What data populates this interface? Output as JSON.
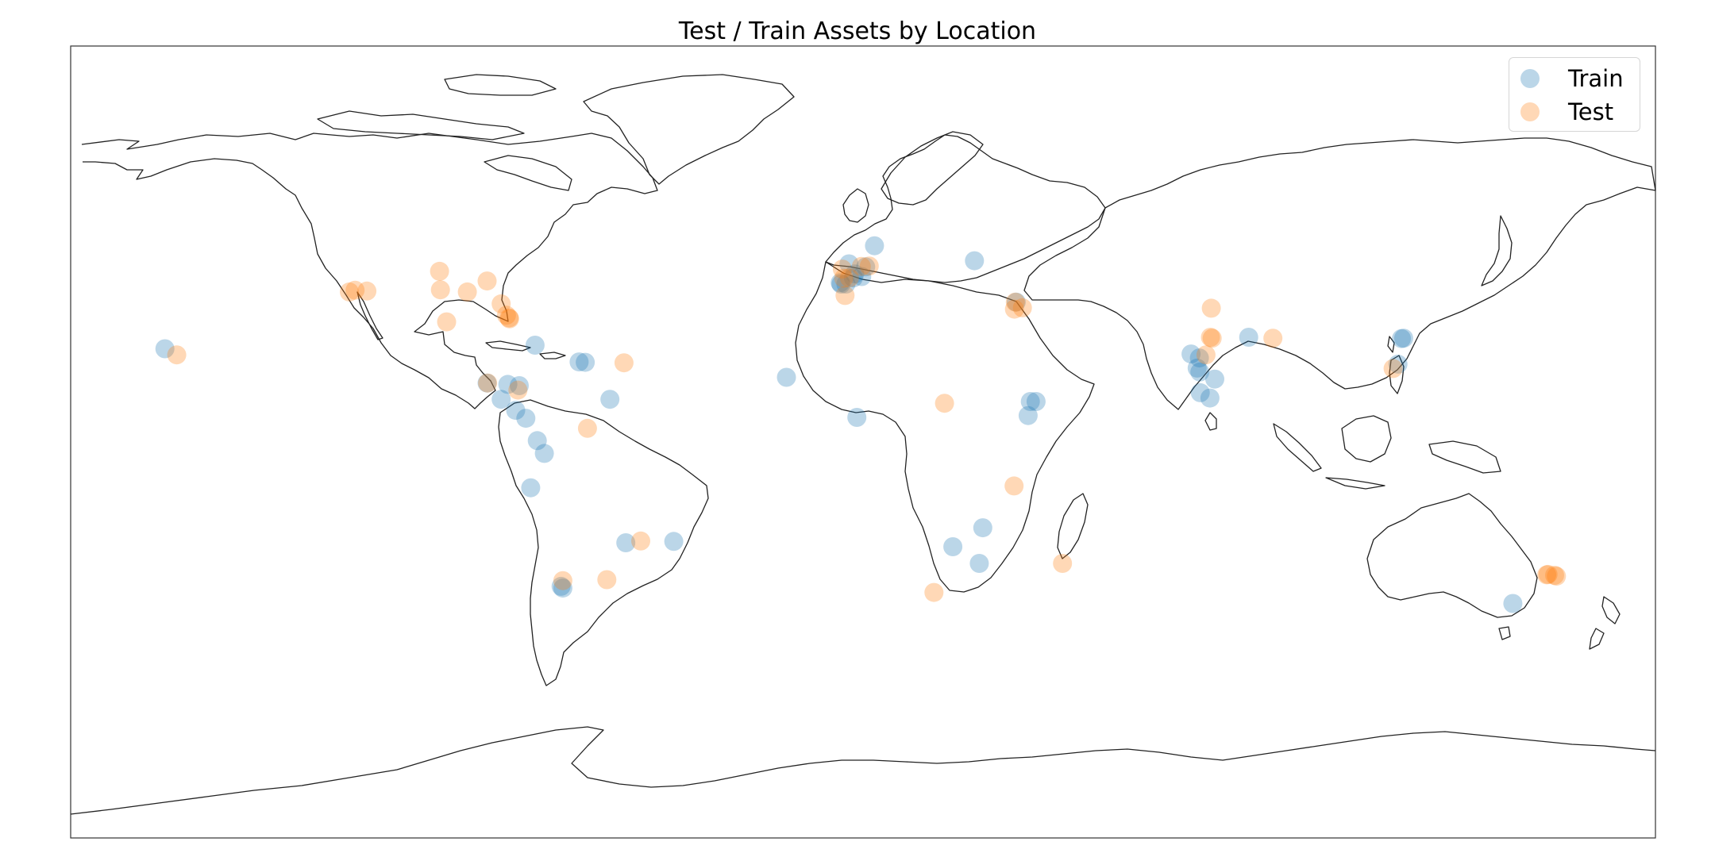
{
  "title": "Test / Train Assets by Location",
  "legend": {
    "placement": "top-right",
    "entries": [
      {
        "name": "Train",
        "color": "#1f77b4"
      },
      {
        "name": "Test",
        "color": "#ff7f0e"
      }
    ]
  },
  "chart_data": {
    "type": "scatter",
    "projection": "equirectangular",
    "xlim": [
      -180,
      180
    ],
    "ylim": [
      -90,
      90
    ],
    "title": "Test / Train Assets by Location",
    "series": [
      {
        "name": "Train",
        "color": "#1f77b4",
        "alpha": 0.3,
        "points": [
          [
            2.6,
            44.6
          ],
          [
            0.6,
            39.8
          ],
          [
            -3.2,
            40.5
          ],
          [
            -1.9,
            38.2
          ],
          [
            -0.3,
            37.6
          ],
          [
            -5.2,
            36.2
          ],
          [
            -2.2,
            37.3
          ],
          [
            -5.0,
            35.9
          ],
          [
            -3.9,
            35.9
          ],
          [
            25.3,
            41.2
          ],
          [
            34.8,
            31.8
          ],
          [
            -74.5,
            22.0
          ],
          [
            -64.5,
            18.2
          ],
          [
            -63.1,
            18.1
          ],
          [
            -85.4,
            13.4
          ],
          [
            -80.7,
            13.1
          ],
          [
            -78.1,
            12.8
          ],
          [
            -82.2,
            9.7
          ],
          [
            -78.9,
            7.2
          ],
          [
            -76.6,
            5.4
          ],
          [
            -57.5,
            9.7
          ],
          [
            -74.0,
            0.3
          ],
          [
            -72.4,
            -2.6
          ],
          [
            -75.5,
            -10.4
          ],
          [
            -53.9,
            -22.9
          ],
          [
            -43.0,
            -22.6
          ],
          [
            -68.6,
            -32.8
          ],
          [
            -68.2,
            -33.2
          ],
          [
            -158.6,
            21.2
          ],
          [
            -17.4,
            14.7
          ],
          [
            -1.4,
            5.6
          ],
          [
            38.0,
            9.2
          ],
          [
            37.5,
            6.0
          ],
          [
            39.3,
            9.2
          ],
          [
            27.2,
            -19.5
          ],
          [
            20.4,
            -23.8
          ],
          [
            26.4,
            -27.6
          ],
          [
            74.5,
            20.0
          ],
          [
            76.4,
            19.1
          ],
          [
            75.9,
            16.8
          ],
          [
            76.5,
            15.9
          ],
          [
            79.9,
            14.3
          ],
          [
            76.6,
            11.2
          ],
          [
            78.8,
            10.0
          ],
          [
            87.6,
            23.8
          ],
          [
            122.3,
            23.5
          ],
          [
            122.8,
            23.6
          ],
          [
            121.5,
            17.7
          ],
          [
            147.6,
            -36.7
          ]
        ]
      },
      {
        "name": "Test",
        "color": "#ff7f0e",
        "alpha": 0.3,
        "points": [
          [
            -116.7,
            34.1
          ],
          [
            -115.4,
            34.5
          ],
          [
            -112.7,
            34.3
          ],
          [
            -96.2,
            38.8
          ],
          [
            -96.0,
            34.6
          ],
          [
            -94.6,
            27.3
          ],
          [
            -89.9,
            34.1
          ],
          [
            -85.4,
            36.6
          ],
          [
            -82.2,
            31.4
          ],
          [
            -81.0,
            28.8
          ],
          [
            -80.4,
            28.2
          ],
          [
            -80.3,
            28.0
          ],
          [
            -155.9,
            19.8
          ],
          [
            -54.3,
            18.0
          ],
          [
            -85.3,
            13.4
          ],
          [
            -78.4,
            11.8
          ],
          [
            -62.6,
            3.1
          ],
          [
            -68.2,
            -31.5
          ],
          [
            -58.2,
            -31.3
          ],
          [
            -50.5,
            -22.5
          ],
          [
            1.4,
            40.0
          ],
          [
            -0.4,
            39.9
          ],
          [
            -4.7,
            39.3
          ],
          [
            -3.1,
            37.3
          ],
          [
            -4.4,
            37.2
          ],
          [
            -4.1,
            33.3
          ],
          [
            34.6,
            31.8
          ],
          [
            36.2,
            30.5
          ],
          [
            34.4,
            30.2
          ],
          [
            18.5,
            8.8
          ],
          [
            34.3,
            -10.0
          ],
          [
            16.1,
            -34.2
          ],
          [
            45.3,
            -27.6
          ],
          [
            79.1,
            30.4
          ],
          [
            78.9,
            23.8
          ],
          [
            79.3,
            23.6
          ],
          [
            77.9,
            19.8
          ],
          [
            93.1,
            23.6
          ],
          [
            120.4,
            16.7
          ],
          [
            155.6,
            -30.1
          ],
          [
            157.5,
            -30.5
          ],
          [
            157.1,
            -30.3
          ],
          [
            155.3,
            -30.2
          ]
        ]
      }
    ]
  }
}
